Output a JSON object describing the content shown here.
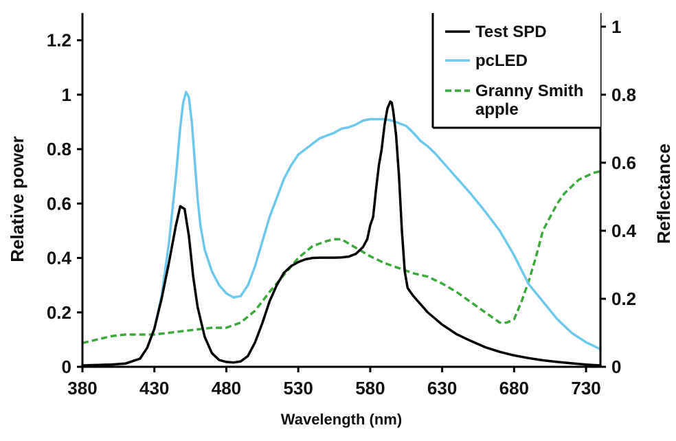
{
  "chart_data": {
    "type": "line",
    "xlabel": "Wavelength (nm)",
    "ylabel": "Relative power",
    "y2label": "Reflectance",
    "xlim": [
      380,
      740
    ],
    "ylim": [
      0,
      1.3
    ],
    "y2lim": [
      0,
      1.04
    ],
    "x_ticks": [
      380,
      430,
      480,
      530,
      580,
      630,
      680,
      730
    ],
    "x_tick_labels": [
      "380",
      "430",
      "480",
      "530",
      "580",
      "630",
      "680",
      "730"
    ],
    "y_ticks": [
      0,
      0.2,
      0.4,
      0.6,
      0.8,
      1,
      1.2
    ],
    "y_tick_labels": [
      "0",
      "0.2",
      "0.4",
      "0.6",
      "0.8",
      "1",
      "1.2"
    ],
    "y2_ticks": [
      0,
      0.2,
      0.4,
      0.6,
      0.8,
      1
    ],
    "y2_tick_labels": [
      "0",
      "0.2",
      "0.4",
      "0.6",
      "0.8",
      "1"
    ],
    "grid": false,
    "legend_position": "top-right",
    "series": [
      {
        "name": "Test SPD",
        "axis": "left",
        "color": "#000000",
        "style": "solid",
        "x": [
          380,
          400,
          410,
          420,
          425,
          430,
          435,
          440,
          445,
          448,
          451,
          454,
          457,
          460,
          465,
          470,
          475,
          480,
          485,
          490,
          495,
          500,
          505,
          510,
          515,
          520,
          525,
          530,
          535,
          540,
          545,
          550,
          555,
          560,
          565,
          570,
          575,
          578,
          580,
          582,
          584,
          586,
          588,
          590,
          592,
          594,
          595,
          596,
          598,
          600,
          602,
          604,
          606,
          610,
          615,
          620,
          630,
          640,
          650,
          660,
          670,
          680,
          690,
          700,
          710,
          720,
          730,
          740
        ],
        "y": [
          0.005,
          0.008,
          0.012,
          0.03,
          0.07,
          0.14,
          0.25,
          0.38,
          0.52,
          0.59,
          0.58,
          0.48,
          0.33,
          0.22,
          0.11,
          0.05,
          0.025,
          0.018,
          0.016,
          0.02,
          0.04,
          0.09,
          0.16,
          0.24,
          0.3,
          0.345,
          0.37,
          0.385,
          0.395,
          0.4,
          0.401,
          0.401,
          0.401,
          0.402,
          0.405,
          0.415,
          0.44,
          0.47,
          0.52,
          0.55,
          0.65,
          0.74,
          0.8,
          0.89,
          0.95,
          0.975,
          0.97,
          0.94,
          0.85,
          0.7,
          0.5,
          0.35,
          0.29,
          0.26,
          0.23,
          0.2,
          0.155,
          0.12,
          0.095,
          0.072,
          0.055,
          0.042,
          0.032,
          0.024,
          0.018,
          0.013,
          0.008,
          0.005
        ]
      },
      {
        "name": "pcLED",
        "axis": "left",
        "color": "#6ec8ec",
        "style": "solid",
        "x": [
          380,
          400,
          410,
          420,
          425,
          430,
          435,
          440,
          445,
          448,
          450,
          452,
          454,
          456,
          458,
          460,
          462,
          465,
          470,
          475,
          480,
          485,
          490,
          495,
          500,
          505,
          510,
          515,
          520,
          525,
          530,
          535,
          540,
          545,
          550,
          555,
          560,
          565,
          570,
          575,
          580,
          585,
          590,
          595,
          600,
          605,
          610,
          615,
          620,
          625,
          630,
          640,
          650,
          660,
          670,
          680,
          690,
          700,
          710,
          720,
          730,
          740
        ],
        "y": [
          0.005,
          0.008,
          0.012,
          0.03,
          0.07,
          0.14,
          0.26,
          0.45,
          0.7,
          0.88,
          0.97,
          1.01,
          0.99,
          0.9,
          0.76,
          0.62,
          0.52,
          0.43,
          0.35,
          0.3,
          0.27,
          0.255,
          0.26,
          0.3,
          0.37,
          0.46,
          0.55,
          0.62,
          0.69,
          0.74,
          0.78,
          0.8,
          0.82,
          0.84,
          0.85,
          0.86,
          0.875,
          0.88,
          0.89,
          0.905,
          0.91,
          0.91,
          0.91,
          0.905,
          0.895,
          0.885,
          0.86,
          0.83,
          0.81,
          0.785,
          0.755,
          0.695,
          0.635,
          0.57,
          0.5,
          0.41,
          0.305,
          0.24,
          0.175,
          0.125,
          0.09,
          0.065
        ]
      },
      {
        "name": "Granny Smith apple",
        "axis": "right",
        "color": "#3aaa3a",
        "style": "dashed",
        "x": [
          380,
          390,
          400,
          410,
          420,
          430,
          440,
          450,
          460,
          470,
          480,
          490,
          500,
          510,
          520,
          530,
          540,
          550,
          555,
          560,
          570,
          580,
          590,
          600,
          610,
          620,
          630,
          640,
          650,
          660,
          670,
          675,
          680,
          685,
          690,
          695,
          700,
          705,
          710,
          715,
          720,
          725,
          730,
          735,
          740
        ],
        "y": [
          0.07,
          0.08,
          0.09,
          0.095,
          0.095,
          0.095,
          0.1,
          0.105,
          0.11,
          0.115,
          0.115,
          0.13,
          0.165,
          0.22,
          0.27,
          0.32,
          0.355,
          0.37,
          0.375,
          0.375,
          0.35,
          0.325,
          0.305,
          0.29,
          0.275,
          0.265,
          0.245,
          0.22,
          0.19,
          0.16,
          0.13,
          0.13,
          0.14,
          0.19,
          0.25,
          0.32,
          0.4,
          0.44,
          0.48,
          0.51,
          0.53,
          0.55,
          0.56,
          0.57,
          0.575
        ]
      }
    ]
  }
}
